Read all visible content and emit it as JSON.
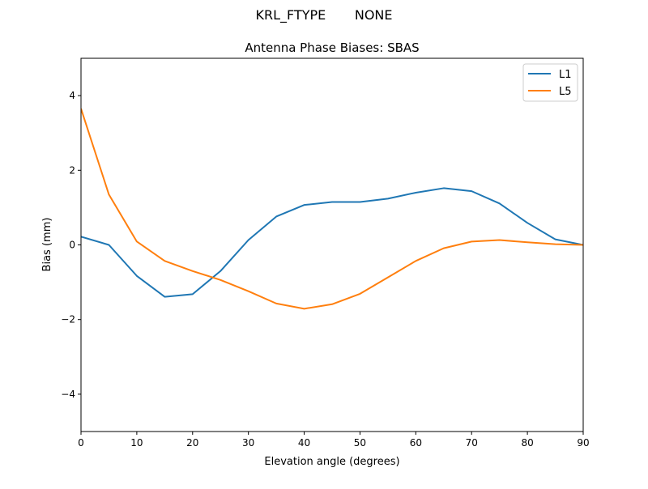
{
  "chart_data": {
    "type": "line",
    "suptitle": "KRL_FTYPE       NONE",
    "title": "Antenna Phase Biases: SBAS",
    "xlabel": "Elevation angle (degrees)",
    "ylabel": "Bias (mm)",
    "xlim": [
      0,
      90
    ],
    "ylim": [
      -5,
      5
    ],
    "xticks": [
      0,
      10,
      20,
      30,
      40,
      50,
      60,
      70,
      80,
      90
    ],
    "xtick_labels": [
      "0",
      "10",
      "20",
      "30",
      "40",
      "50",
      "60",
      "70",
      "80",
      "90"
    ],
    "yticks": [
      -4,
      -2,
      0,
      2,
      4
    ],
    "ytick_labels": [
      "−4",
      "−2",
      "0",
      "2",
      "4"
    ],
    "grid": false,
    "legend_position": "top-right",
    "x": [
      0,
      5,
      10,
      15,
      20,
      25,
      30,
      35,
      40,
      45,
      50,
      55,
      60,
      65,
      70,
      75,
      80,
      85,
      90
    ],
    "series": [
      {
        "name": "L1",
        "color": "#1f77b4",
        "values": [
          0.22,
          0.0,
          -0.83,
          -1.39,
          -1.32,
          -0.7,
          0.13,
          0.76,
          1.07,
          1.15,
          1.15,
          1.24,
          1.4,
          1.52,
          1.44,
          1.11,
          0.59,
          0.15,
          0.0
        ]
      },
      {
        "name": "L5",
        "color": "#ff7f0e",
        "values": [
          3.65,
          1.35,
          0.09,
          -0.43,
          -0.7,
          -0.94,
          -1.24,
          -1.57,
          -1.71,
          -1.59,
          -1.31,
          -0.87,
          -0.43,
          -0.09,
          0.09,
          0.13,
          0.07,
          0.02,
          0.0
        ]
      }
    ]
  }
}
